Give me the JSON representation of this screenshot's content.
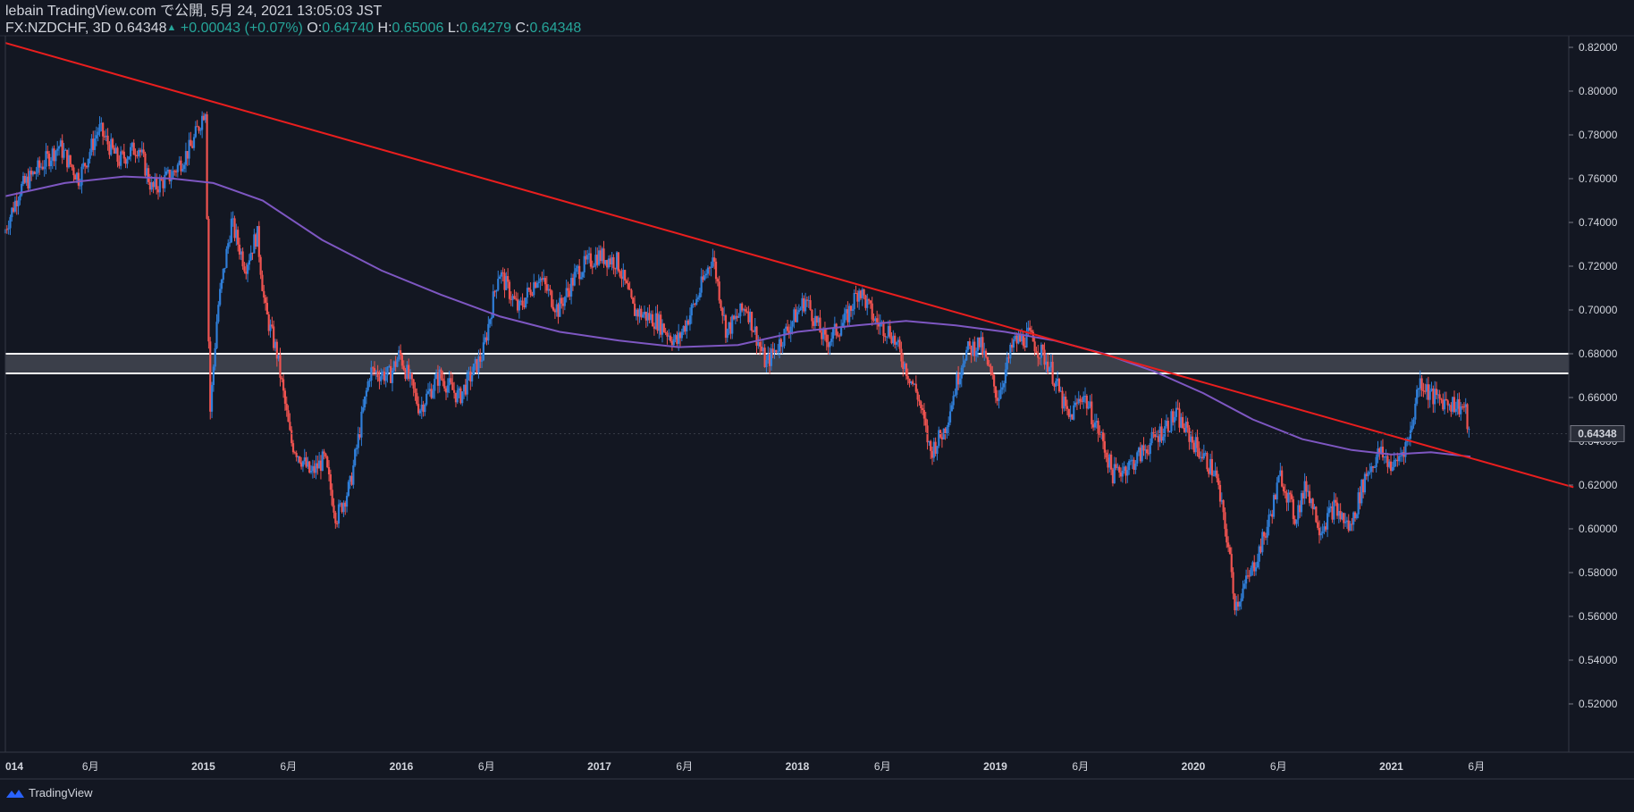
{
  "header": {
    "publisher": "lebain TradingView.com で公開, 5月 24, 2021 13:05:03 JST",
    "symbol": "FX:NZDCHF, 3D",
    "last": "0.64348",
    "change": "+0.00043 (+0.07%)",
    "o_label": "O:",
    "o_value": "0.64740",
    "h_label": "H:",
    "h_value": "0.65006",
    "l_label": "L:",
    "l_value": "0.64279",
    "c_label": "C:",
    "c_value": "0.64348"
  },
  "footer": {
    "brand": "TradingView"
  },
  "colors": {
    "background": "#131722",
    "up": "#2f7ed8",
    "down": "#ef5350",
    "ma": "#7e57c2",
    "trendline": "#e91e1e",
    "zone": "#ffffff",
    "text": "#d1d4dc"
  },
  "chart_data": {
    "type": "candlestick",
    "symbol": "FX:NZDCHF",
    "interval": "3D",
    "ylim": [
      0.51,
      0.825
    ],
    "y_ticks": [
      "0.82000",
      "0.80000",
      "0.78000",
      "0.76000",
      "0.74000",
      "0.72000",
      "0.70000",
      "0.68000",
      "0.66000",
      "0.64000",
      "0.62000",
      "0.60000",
      "0.58000",
      "0.56000",
      "0.54000",
      "0.52000"
    ],
    "last_price_label": "0.64348",
    "x_ticks": [
      {
        "label": "014",
        "t": 2014.0
      },
      {
        "label": "6月",
        "t": 2014.43
      },
      {
        "label": "2015",
        "t": 2015.0
      },
      {
        "label": "6月",
        "t": 2015.43
      },
      {
        "label": "2016",
        "t": 2016.0
      },
      {
        "label": "6月",
        "t": 2016.43
      },
      {
        "label": "2017",
        "t": 2017.0
      },
      {
        "label": "6月",
        "t": 2017.43
      },
      {
        "label": "2018",
        "t": 2018.0
      },
      {
        "label": "6月",
        "t": 2018.43
      },
      {
        "label": "2019",
        "t": 2019.0
      },
      {
        "label": "6月",
        "t": 2019.43
      },
      {
        "label": "2020",
        "t": 2020.0
      },
      {
        "label": "6月",
        "t": 2020.43
      },
      {
        "label": "2021",
        "t": 2021.0
      },
      {
        "label": "6月",
        "t": 2021.43
      }
    ],
    "price_path": [
      [
        2014.0,
        0.735
      ],
      [
        2014.08,
        0.755
      ],
      [
        2014.18,
        0.765
      ],
      [
        2014.28,
        0.775
      ],
      [
        2014.38,
        0.76
      ],
      [
        2014.48,
        0.783
      ],
      [
        2014.58,
        0.768
      ],
      [
        2014.68,
        0.775
      ],
      [
        2014.75,
        0.755
      ],
      [
        2014.85,
        0.762
      ],
      [
        2014.95,
        0.775
      ],
      [
        2015.02,
        0.793
      ],
      [
        2015.04,
        0.65
      ],
      [
        2015.08,
        0.7
      ],
      [
        2015.15,
        0.74
      ],
      [
        2015.22,
        0.72
      ],
      [
        2015.28,
        0.735
      ],
      [
        2015.32,
        0.7
      ],
      [
        2015.38,
        0.68
      ],
      [
        2015.45,
        0.64
      ],
      [
        2015.55,
        0.625
      ],
      [
        2015.62,
        0.632
      ],
      [
        2015.68,
        0.605
      ],
      [
        2015.75,
        0.62
      ],
      [
        2015.85,
        0.672
      ],
      [
        2015.95,
        0.67
      ],
      [
        2016.0,
        0.68
      ],
      [
        2016.1,
        0.655
      ],
      [
        2016.2,
        0.67
      ],
      [
        2016.3,
        0.66
      ],
      [
        2016.42,
        0.68
      ],
      [
        2016.5,
        0.718
      ],
      [
        2016.6,
        0.7
      ],
      [
        2016.7,
        0.716
      ],
      [
        2016.8,
        0.7
      ],
      [
        2016.9,
        0.718
      ],
      [
        2017.0,
        0.725
      ],
      [
        2017.1,
        0.722
      ],
      [
        2017.18,
        0.7
      ],
      [
        2017.3,
        0.695
      ],
      [
        2017.4,
        0.685
      ],
      [
        2017.5,
        0.705
      ],
      [
        2017.58,
        0.725
      ],
      [
        2017.65,
        0.69
      ],
      [
        2017.75,
        0.702
      ],
      [
        2017.85,
        0.675
      ],
      [
        2017.95,
        0.69
      ],
      [
        2018.05,
        0.705
      ],
      [
        2018.15,
        0.685
      ],
      [
        2018.25,
        0.695
      ],
      [
        2018.32,
        0.71
      ],
      [
        2018.4,
        0.695
      ],
      [
        2018.48,
        0.69
      ],
      [
        2018.55,
        0.675
      ],
      [
        2018.62,
        0.66
      ],
      [
        2018.68,
        0.635
      ],
      [
        2018.75,
        0.645
      ],
      [
        2018.85,
        0.68
      ],
      [
        2018.93,
        0.685
      ],
      [
        2019.02,
        0.66
      ],
      [
        2019.1,
        0.685
      ],
      [
        2019.18,
        0.688
      ],
      [
        2019.28,
        0.675
      ],
      [
        2019.38,
        0.65
      ],
      [
        2019.45,
        0.662
      ],
      [
        2019.55,
        0.64
      ],
      [
        2019.6,
        0.625
      ],
      [
        2019.7,
        0.63
      ],
      [
        2019.8,
        0.64
      ],
      [
        2019.92,
        0.652
      ],
      [
        2020.02,
        0.638
      ],
      [
        2020.12,
        0.625
      ],
      [
        2020.18,
        0.595
      ],
      [
        2020.22,
        0.565
      ],
      [
        2020.3,
        0.58
      ],
      [
        2020.38,
        0.6
      ],
      [
        2020.45,
        0.625
      ],
      [
        2020.52,
        0.605
      ],
      [
        2020.58,
        0.62
      ],
      [
        2020.65,
        0.6
      ],
      [
        2020.72,
        0.61
      ],
      [
        2020.8,
        0.6
      ],
      [
        2020.88,
        0.625
      ],
      [
        2020.95,
        0.635
      ],
      [
        2021.02,
        0.628
      ],
      [
        2021.1,
        0.642
      ],
      [
        2021.15,
        0.668
      ],
      [
        2021.22,
        0.66
      ],
      [
        2021.3,
        0.658
      ],
      [
        2021.38,
        0.655
      ],
      [
        2021.4,
        0.6435
      ]
    ],
    "moving_average": [
      [
        2014.0,
        0.752
      ],
      [
        2014.3,
        0.758
      ],
      [
        2014.6,
        0.761
      ],
      [
        2014.85,
        0.76
      ],
      [
        2015.05,
        0.758
      ],
      [
        2015.3,
        0.75
      ],
      [
        2015.6,
        0.732
      ],
      [
        2015.9,
        0.718
      ],
      [
        2016.2,
        0.707
      ],
      [
        2016.5,
        0.697
      ],
      [
        2016.8,
        0.69
      ],
      [
        2017.1,
        0.686
      ],
      [
        2017.4,
        0.683
      ],
      [
        2017.7,
        0.684
      ],
      [
        2018.0,
        0.69
      ],
      [
        2018.3,
        0.693
      ],
      [
        2018.55,
        0.695
      ],
      [
        2018.8,
        0.693
      ],
      [
        2019.05,
        0.69
      ],
      [
        2019.3,
        0.686
      ],
      [
        2019.55,
        0.68
      ],
      [
        2019.8,
        0.672
      ],
      [
        2020.05,
        0.662
      ],
      [
        2020.3,
        0.65
      ],
      [
        2020.55,
        0.641
      ],
      [
        2020.8,
        0.636
      ],
      [
        2021.0,
        0.634
      ],
      [
        2021.2,
        0.635
      ],
      [
        2021.4,
        0.633
      ]
    ],
    "trendline": {
      "start": [
        2014.0,
        0.822
      ],
      "end": [
        2021.92,
        0.619
      ]
    },
    "zone": {
      "top": 0.68,
      "bottom": 0.671
    }
  }
}
